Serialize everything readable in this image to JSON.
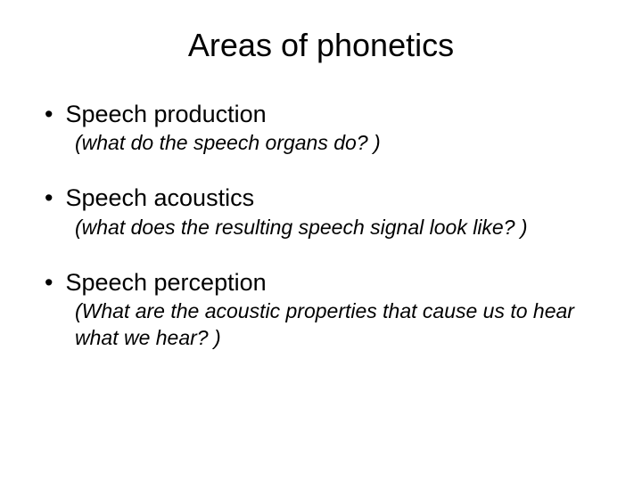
{
  "title": "Areas of phonetics",
  "items": [
    {
      "heading": "Speech production",
      "sub": "(what do the speech organs do? )"
    },
    {
      "heading": "Speech acoustics",
      "sub": "(what does the resulting speech signal look like? )"
    },
    {
      "heading": "Speech perception",
      "sub": "(What are the acoustic properties that cause us to hear what we hear? )"
    }
  ],
  "styling": {
    "background_color": "#ffffff",
    "text_color": "#000000",
    "title_fontsize": 36,
    "heading_fontsize": 27,
    "sub_fontsize": 23,
    "font_family": "Arial"
  }
}
